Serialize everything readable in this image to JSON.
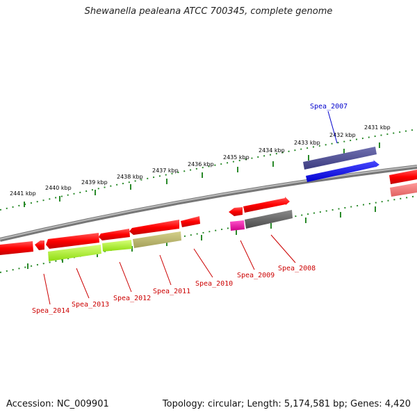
{
  "title": "Shewanella pealeana ATCC 700345, complete genome",
  "footer": {
    "accession": "Accession: NC_009901",
    "summary": "Topology: circular; Length: 5,174,581 bp; Genes: 4,420"
  },
  "colors": {
    "backbone": "#888888",
    "tick": "#2a8a2a",
    "forward_label": "#0000cc",
    "reverse_label": "#cc0000"
  },
  "axis_ticks": [
    "2441 kbp",
    "2440 kbp",
    "2439 kbp",
    "2438 kbp",
    "2437 kbp",
    "2436 kbp",
    "2435 kbp",
    "2434 kbp",
    "2433 kbp",
    "2432 kbp",
    "2431 kbp"
  ],
  "gene_labels": [
    {
      "name": "Spea_2007",
      "strand": "forward"
    },
    {
      "name": "Spea_2008",
      "strand": "reverse"
    },
    {
      "name": "Spea_2009",
      "strand": "reverse"
    },
    {
      "name": "Spea_2010",
      "strand": "reverse"
    },
    {
      "name": "Spea_2011",
      "strand": "reverse"
    },
    {
      "name": "Spea_2012",
      "strand": "reverse"
    },
    {
      "name": "Spea_2013",
      "strand": "reverse"
    },
    {
      "name": "Spea_2014",
      "strand": "reverse"
    }
  ]
}
